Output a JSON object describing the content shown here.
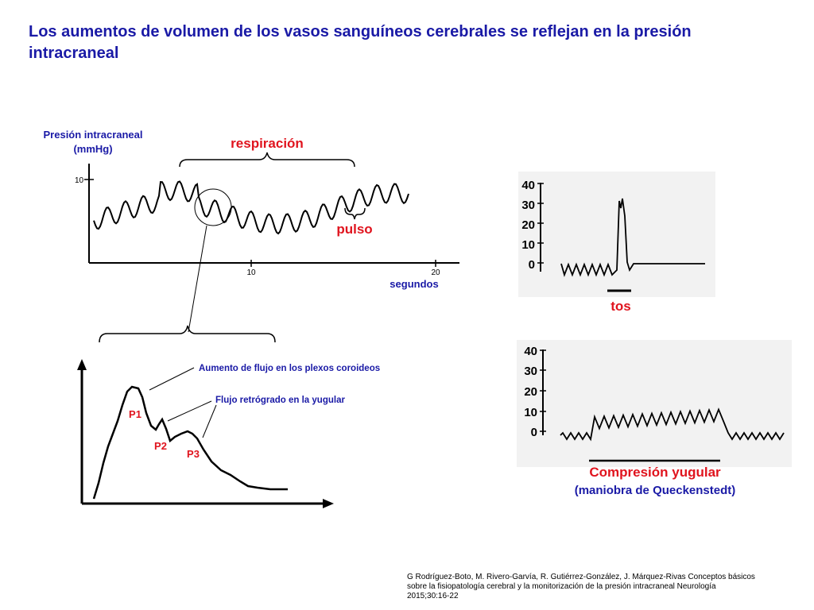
{
  "title": "Los aumentos de volumen de los vasos sanguíneos cerebrales se reflejan en la presión intracraneal",
  "main_trace": {
    "ylabel_line1": "Presión intracraneal",
    "ylabel_line2": "(mmHg)",
    "ytick": "10",
    "xticks": [
      "10",
      "20"
    ],
    "xlabel": "segundos",
    "respiration_label": "respiración",
    "pulse_label": "pulso"
  },
  "waveform": {
    "peak_labels": [
      "P1",
      "P2",
      "P3"
    ],
    "annotation_1": "Aumento de flujo en los plexos coroideos",
    "annotation_2": "Flujo retrógrado en la yugular"
  },
  "cough_panel": {
    "yticks": [
      "40",
      "30",
      "20",
      "10",
      "0"
    ],
    "label": "tos"
  },
  "jugular_panel": {
    "yticks": [
      "40",
      "30",
      "20",
      "10",
      "0"
    ],
    "label_line1": "Compresión yugular",
    "label_line2": "(maniobra de Queckenstedt)"
  },
  "citation": {
    "line1": "G Rodríguez-Boto, M. Rivero-Garvía, R. Gutiérrez-González, J. Márquez-Rivas Conceptos básicos",
    "line2": "sobre la fisiopatología cerebral y la monitorización de la presión intracraneal Neurología",
    "line3": "2015;30:16-22"
  },
  "colors": {
    "title": "#1a1aa6",
    "labels": "#1a1aa6",
    "emphasis": "#e0141e",
    "trace": "#000000"
  },
  "chart_data": [
    {
      "type": "line",
      "title": "",
      "ylabel": "Presión intracraneal (mmHg)",
      "xlabel": "segundos",
      "ytick_labels": [
        "10"
      ],
      "xtick_labels": [
        "10",
        "20"
      ],
      "annotations": [
        "respiración",
        "pulso"
      ],
      "series": [
        {
          "x": [
            0,
            1,
            2,
            3,
            4,
            5,
            6,
            7,
            8,
            9,
            10,
            11,
            12,
            13,
            14,
            15,
            16,
            17,
            18
          ],
          "values": [
            3,
            5,
            6,
            7,
            8,
            9,
            9,
            9,
            7,
            5,
            4,
            5,
            5,
            6,
            6,
            7,
            9,
            10,
            9
          ]
        }
      ]
    },
    {
      "type": "line",
      "title": "",
      "ytick_labels": [
        "P1",
        "P2",
        "P3"
      ],
      "annotations": [
        "Aumento de flujo en los plexos coroideos",
        "Flujo retrógrado en la yugular"
      ],
      "series": [
        {
          "x": [
            0,
            1,
            2,
            3,
            4,
            5,
            6,
            7
          ],
          "values": [
            0,
            5,
            9,
            6,
            5,
            4,
            2,
            0
          ]
        }
      ]
    },
    {
      "type": "line",
      "title": "",
      "ylim": [
        0,
        40
      ],
      "yticks": [
        0,
        10,
        20,
        30,
        40
      ],
      "annotations": [
        "tos"
      ],
      "series": [
        {
          "x": [
            0,
            1,
            2,
            3,
            4,
            5,
            6
          ],
          "values": [
            0,
            0,
            0,
            32,
            0,
            0,
            0
          ]
        }
      ]
    },
    {
      "type": "line",
      "title": "",
      "ylim": [
        0,
        40
      ],
      "yticks": [
        0,
        10,
        20,
        30,
        40
      ],
      "annotations": [
        "Compresión yugular",
        "(maniobra de Queckenstedt)"
      ],
      "series": [
        {
          "x": [
            0,
            1,
            2,
            3,
            4,
            5,
            6,
            7
          ],
          "values": [
            0,
            0,
            8,
            9,
            10,
            11,
            0,
            0
          ]
        }
      ]
    }
  ]
}
